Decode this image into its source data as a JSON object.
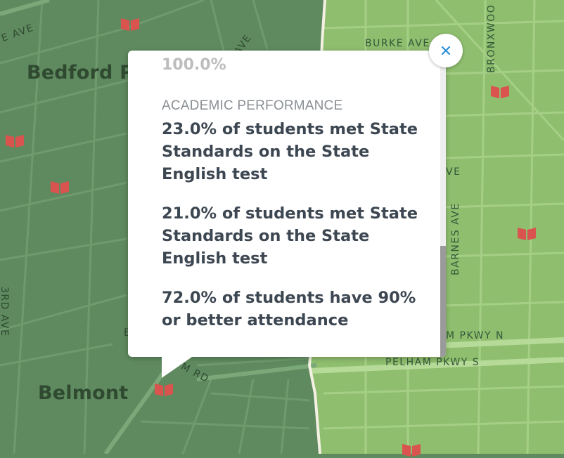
{
  "map": {
    "neighborhoods": [
      {
        "id": "bedford-park",
        "label": "Bedford P"
      },
      {
        "id": "belmont",
        "label": "Belmont"
      }
    ],
    "streets": [
      {
        "id": "e-ave-nw",
        "label": "E AVE"
      },
      {
        "id": "ave-top",
        "label": "AVE"
      },
      {
        "id": "burke-ave",
        "label": "BURKE AVE"
      },
      {
        "id": "bronxwood",
        "label": "BRONXWOO"
      },
      {
        "id": "ave-right",
        "label": "VE"
      },
      {
        "id": "barnes-ave",
        "label": "BARNES AVE"
      },
      {
        "id": "third-ave",
        "label": "3RD AVE"
      },
      {
        "id": "pelham-pkwy-n",
        "label": "M PKWY N"
      },
      {
        "id": "pelham-pkwy-s",
        "label": "PELHAM PKWY S"
      },
      {
        "id": "rd",
        "label": "M RD"
      },
      {
        "id": "e-left",
        "label": "E"
      }
    ],
    "marker_icon": "school-book-icon",
    "colors": {
      "district_dark": "#5f8a5f",
      "district_light": "#8fbe6e",
      "marker": "#d9534f",
      "boundary": "#f4f1e4"
    }
  },
  "popup": {
    "previous_value": "100.0%",
    "section_title": "ACADEMIC PERFORMANCE",
    "stats": [
      {
        "text": "23.0% of students met State Standards on the State English test"
      },
      {
        "text": "21.0% of students met State Standards on the State English test"
      },
      {
        "text": "72.0% of students have 90% or better attendance"
      }
    ],
    "close_icon": "close-icon",
    "accent_color": "#2a8fd8",
    "scroll_position_fraction": 1.0
  }
}
